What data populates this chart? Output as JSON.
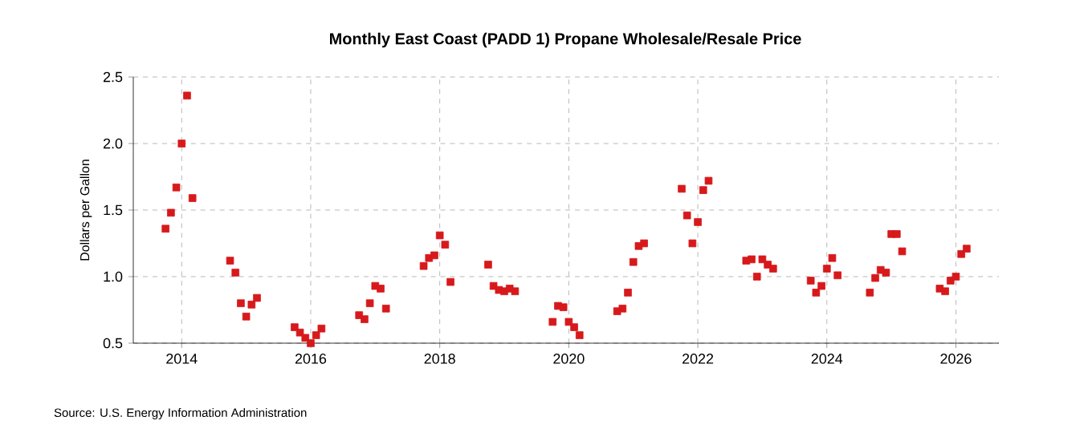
{
  "chart_data": {
    "type": "scatter",
    "title": "Monthly East Coast (PADD 1) Propane Wholesale/Resale Price",
    "ylabel": "Dollars per Gallon",
    "annotations": [
      "Source: U.S. Energy Information Administration"
    ],
    "x": [
      "2013-10",
      "2013-11",
      "2013-12",
      "2014-01",
      "2014-02",
      "2014-03",
      "2014-10",
      "2014-11",
      "2014-12",
      "2015-01",
      "2015-02",
      "2015-03",
      "2015-10",
      "2015-11",
      "2015-12",
      "2016-01",
      "2016-02",
      "2016-03",
      "2016-10",
      "2016-11",
      "2016-12",
      "2017-01",
      "2017-02",
      "2017-03",
      "2017-10",
      "2017-11",
      "2017-12",
      "2018-01",
      "2018-02",
      "2018-03",
      "2018-10",
      "2018-11",
      "2018-12",
      "2019-01",
      "2019-02",
      "2019-03",
      "2019-10",
      "2019-11",
      "2019-12",
      "2020-01",
      "2020-02",
      "2020-03",
      "2020-10",
      "2020-11",
      "2020-12",
      "2021-01",
      "2021-02",
      "2021-03",
      "2021-10",
      "2021-11",
      "2021-12",
      "2022-01",
      "2022-02",
      "2022-03",
      "2022-10",
      "2022-11",
      "2022-12",
      "2023-01",
      "2023-02",
      "2023-03",
      "2023-10",
      "2023-11",
      "2023-12",
      "2024-01",
      "2024-02",
      "2024-03",
      "2024-09",
      "2024-10",
      "2024-11",
      "2024-12",
      "2025-01",
      "2025-02",
      "2025-03",
      "2025-10",
      "2025-11",
      "2025-12",
      "2026-01",
      "2026-02",
      "2026-03"
    ],
    "series": [
      {
        "color": "#d7191c",
        "values": [
          1.36,
          1.48,
          1.67,
          2.0,
          2.36,
          1.59,
          1.12,
          1.03,
          0.8,
          0.7,
          0.79,
          0.84,
          0.62,
          0.58,
          0.54,
          0.5,
          0.56,
          0.61,
          0.71,
          0.68,
          0.8,
          0.93,
          0.91,
          0.76,
          1.08,
          1.14,
          1.16,
          1.31,
          1.24,
          0.96,
          1.09,
          0.93,
          0.9,
          0.89,
          0.91,
          0.89,
          0.66,
          0.78,
          0.77,
          0.66,
          0.62,
          0.56,
          0.74,
          0.76,
          0.88,
          1.11,
          1.23,
          1.25,
          1.66,
          1.46,
          1.25,
          1.41,
          1.65,
          1.72,
          1.12,
          1.13,
          1.0,
          1.13,
          1.09,
          1.06,
          0.97,
          0.88,
          0.93,
          1.06,
          1.14,
          1.01,
          0.88,
          0.99,
          1.05,
          1.03,
          1.32,
          1.32,
          1.19,
          0.91,
          0.89,
          0.97,
          1.0,
          1.17,
          1.21
        ]
      }
    ],
    "xlim": [
      "2013-04",
      "2026-09"
    ],
    "xticks": [
      "2014",
      "2016",
      "2018",
      "2020",
      "2022",
      "2024",
      "2026"
    ],
    "ylim": [
      0.5,
      2.5
    ],
    "yticks": [
      0.5,
      {
        "value": 1,
        "label": "1.0"
      },
      1.5,
      {
        "value": 2,
        "label": "2.0"
      },
      2.5
    ],
    "grid": true,
    "marker": "square"
  }
}
